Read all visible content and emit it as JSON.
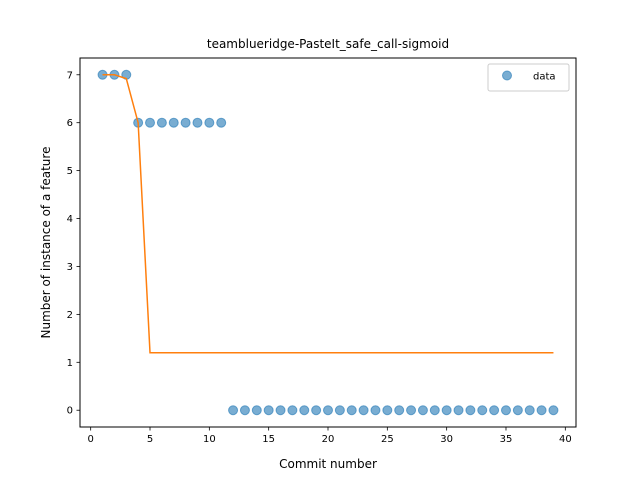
{
  "chart_data": {
    "type": "scatter",
    "title": "teamblueridge-PasteIt_safe_call-sigmoid",
    "xlabel": "Commit number",
    "ylabel": "Number of instance of a feature",
    "xlim": [
      -0.9,
      40.9
    ],
    "ylim": [
      -0.35,
      7.35
    ],
    "xticks": [
      0,
      5,
      10,
      15,
      20,
      25,
      30,
      35,
      40
    ],
    "yticks": [
      0,
      1,
      2,
      3,
      4,
      5,
      6,
      7
    ],
    "grid": false,
    "legend_position": "top-right",
    "series": [
      {
        "name": "data",
        "kind": "scatter",
        "color": "#1f77b4",
        "x": [
          1,
          2,
          3,
          4,
          5,
          6,
          7,
          8,
          9,
          10,
          11,
          12,
          13,
          14,
          15,
          16,
          17,
          18,
          19,
          20,
          21,
          22,
          23,
          24,
          25,
          26,
          27,
          28,
          29,
          30,
          31,
          32,
          33,
          34,
          35,
          36,
          37,
          38,
          39
        ],
        "y": [
          7,
          7,
          7,
          6,
          6,
          6,
          6,
          6,
          6,
          6,
          6,
          0,
          0,
          0,
          0,
          0,
          0,
          0,
          0,
          0,
          0,
          0,
          0,
          0,
          0,
          0,
          0,
          0,
          0,
          0,
          0,
          0,
          0,
          0,
          0,
          0,
          0,
          0,
          0
        ]
      },
      {
        "kind": "line",
        "color": "#ff7f0e",
        "x": [
          1,
          2,
          3,
          4,
          5,
          6,
          7,
          8,
          9,
          10,
          11,
          12,
          13,
          14,
          15,
          16,
          17,
          18,
          19,
          20,
          21,
          22,
          23,
          24,
          25,
          26,
          27,
          28,
          29,
          30,
          31,
          32,
          33,
          34,
          35,
          36,
          37,
          38,
          39
        ],
        "y": [
          7.0,
          7.0,
          6.92,
          6.0,
          1.2,
          1.2,
          1.2,
          1.2,
          1.2,
          1.2,
          1.2,
          1.2,
          1.2,
          1.2,
          1.2,
          1.2,
          1.2,
          1.2,
          1.2,
          1.2,
          1.2,
          1.2,
          1.2,
          1.2,
          1.2,
          1.2,
          1.2,
          1.2,
          1.2,
          1.2,
          1.2,
          1.2,
          1.2,
          1.2,
          1.2,
          1.2,
          1.2,
          1.2,
          1.2
        ]
      }
    ]
  }
}
